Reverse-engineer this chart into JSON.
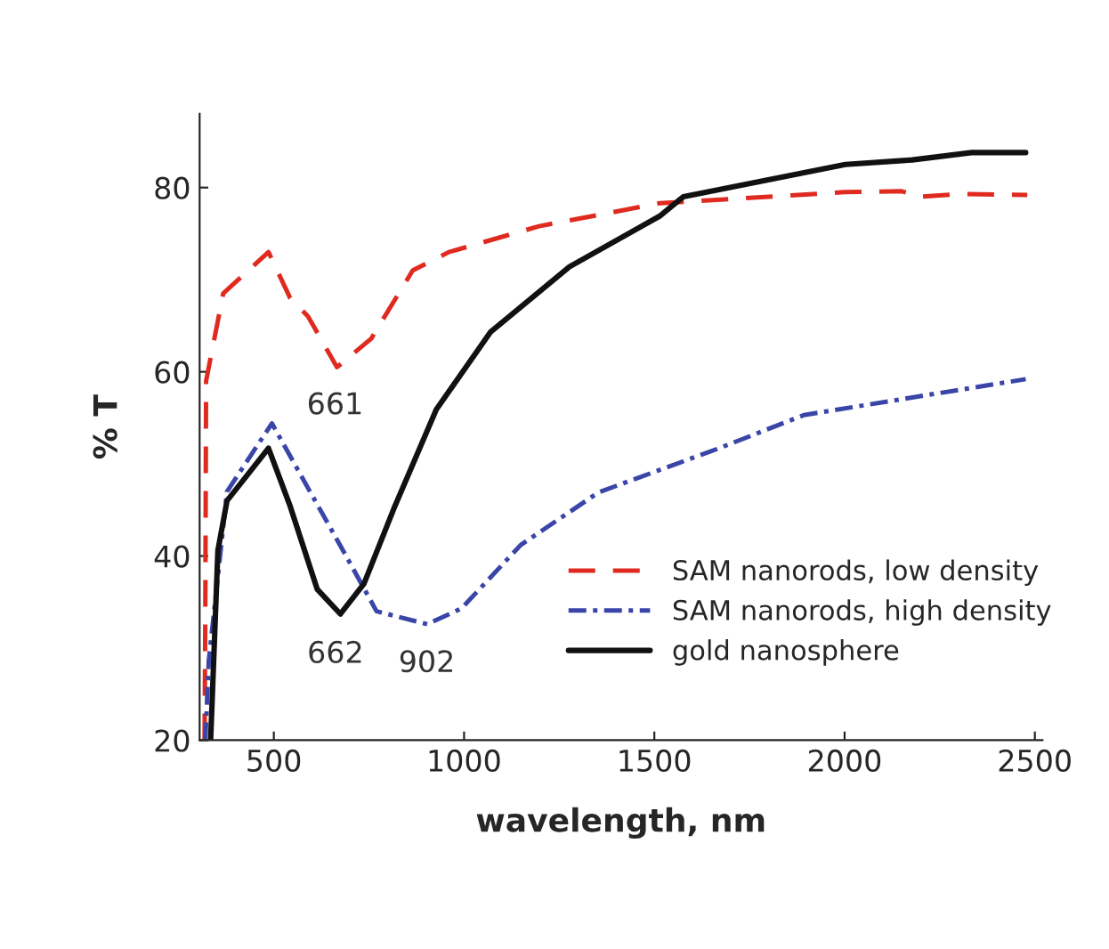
{
  "chart_data": {
    "type": "line",
    "xlabel": "wavelength, nm",
    "ylabel": "% T",
    "xlim": [
      305,
      2520
    ],
    "ylim": [
      20,
      88
    ],
    "xticks": [
      500,
      1000,
      1500,
      2000,
      2500
    ],
    "yticks": [
      20,
      40,
      60,
      80
    ],
    "grid": false,
    "legend": "bottom right",
    "series": [
      {
        "name": "SAM nanorods, low density",
        "color": "#e02a1f",
        "line_style": "dashed",
        "x": [
          318,
          320,
          322,
          367,
          486,
          543,
          590,
          666,
          756,
          865,
          960,
          1197,
          1514,
          2000,
          2150,
          2200,
          2300,
          2480
        ],
        "values": [
          20,
          34,
          59,
          68.5,
          73,
          68,
          66,
          60.5,
          63.6,
          71,
          73,
          75.8,
          78.3,
          79.5,
          79.6,
          79,
          79.3,
          79.2
        ]
      },
      {
        "name": "SAM nanorods, high density",
        "color": "#3a45a8",
        "line_style": "dashdot",
        "x": [
          320,
          329,
          377,
          495,
          595,
          690,
          770,
          903,
          993,
          1149,
          1353,
          1670,
          1893,
          2206,
          2476
        ],
        "values": [
          20,
          28.6,
          47,
          54.4,
          47,
          40,
          34,
          32.6,
          34.3,
          41.2,
          46.9,
          51.7,
          55.3,
          57.4,
          59.2
        ]
      },
      {
        "name": "gold nanosphere",
        "color": "#111111",
        "line_style": "solid",
        "x": [
          334,
          353,
          377,
          486,
          543,
          614,
          675,
          737,
          818,
          927,
          1069,
          1277,
          1514,
          1576,
          2002,
          2178,
          2334,
          2476
        ],
        "values": [
          20,
          40.6,
          46,
          51.7,
          45.4,
          36.4,
          33.7,
          37,
          45.4,
          55.9,
          64.3,
          71.4,
          76.9,
          79,
          82.5,
          83,
          83.8,
          83.8
        ]
      }
    ],
    "annotations": [
      {
        "text": "661",
        "x": 661,
        "y": 60
      },
      {
        "text": "662",
        "x": 662,
        "y": 33
      },
      {
        "text": "902",
        "x": 902,
        "y": 32
      }
    ]
  }
}
